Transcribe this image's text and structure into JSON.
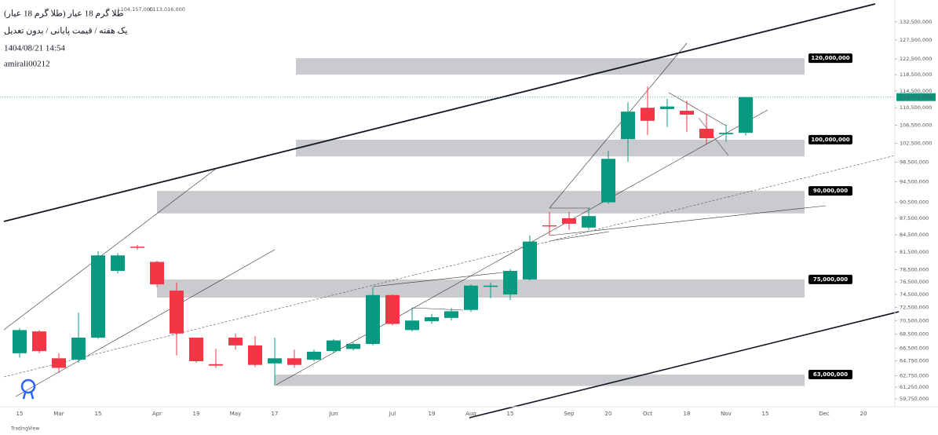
{
  "chart_data": {
    "type": "candlestick",
    "title": "طلا گرم 18 عیار (طلا گرم 18 عیار)",
    "subtitle": "یک هفته / قیمت پایانی / بدون تعدیل",
    "date_text": "1404/08/21 14:54",
    "author": "amirali00212",
    "ohlc_text": [
      "L104,157,000",
      "C113,016,000"
    ],
    "branding": "TradingView",
    "log_scale": true,
    "grid": false,
    "up_color": "#089981",
    "down_color": "#f23645",
    "zone_color": "#c4c5c9",
    "categories": [
      null,
      "15",
      null,
      "Mar",
      null,
      "15",
      null,
      null,
      "Apr",
      null,
      "19",
      null,
      "May",
      null,
      "17",
      null,
      null,
      "Jun",
      null,
      null,
      "Jul",
      null,
      "19",
      null,
      "Aug",
      null,
      "15",
      null,
      null,
      "Sep",
      null,
      "20",
      null,
      "Oct",
      null,
      "18",
      null,
      "Nov",
      null,
      "15",
      null,
      null,
      "Dec",
      null,
      "20",
      null
    ],
    "open": [
      null,
      65800000,
      68900000,
      65100000,
      64900000,
      68000000,
      78300000,
      82400000,
      79800000,
      75100000,
      68000000,
      64300000,
      68000000,
      66900000,
      64400000,
      65100000,
      64900000,
      66100000,
      66400000,
      67100000,
      74400000,
      69100000,
      70400000,
      70900000,
      72100000,
      75700000,
      74500000,
      76900000,
      86200000,
      87500000,
      85800000,
      90500000,
      103400000,
      110500000,
      110200000,
      109800000,
      105700000,
      104500000,
      104800000,
      null,
      null,
      null,
      null,
      null,
      null,
      null
    ],
    "high": [
      null,
      69400000,
      69100000,
      65800000,
      71700000,
      81600000,
      81300000,
      82700000,
      80000000,
      76400000,
      68000000,
      66400000,
      68600000,
      68200000,
      68000000,
      66300000,
      66300000,
      67800000,
      67300000,
      75600000,
      74500000,
      72400000,
      71500000,
      72400000,
      76100000,
      76400000,
      78600000,
      84400000,
      88700000,
      88700000,
      89400000,
      100900000,
      111800000,
      115600000,
      112600000,
      112200000,
      109100000,
      106700000,
      113016000,
      null,
      null,
      null,
      null,
      null,
      null,
      null
    ],
    "low": [
      null,
      65200000,
      65800000,
      63100000,
      64500000,
      67800000,
      77900000,
      81900000,
      75700000,
      65500000,
      64500000,
      63800000,
      66300000,
      63900000,
      61500000,
      63800000,
      64700000,
      65800000,
      66200000,
      66900000,
      69800000,
      68900000,
      70000000,
      70500000,
      71800000,
      73900000,
      73600000,
      76700000,
      84400000,
      85400000,
      85400000,
      90200000,
      98600000,
      104300000,
      106100000,
      105000000,
      102400000,
      102900000,
      104157000,
      null,
      null,
      null,
      null,
      null,
      null,
      null
    ],
    "close": [
      null,
      69100000,
      66100000,
      63800000,
      68000000,
      80900000,
      80900000,
      82200000,
      76100000,
      68600000,
      64700000,
      64100000,
      66900000,
      64200000,
      65100000,
      64200000,
      66000000,
      67600000,
      67100000,
      74400000,
      70000000,
      70500000,
      71000000,
      71900000,
      75900000,
      75900000,
      78300000,
      83300000,
      86000000,
      86500000,
      87900000,
      99200000,
      109600000,
      107500000,
      110800000,
      108900000,
      103600000,
      104800000,
      113016000,
      null,
      null,
      null,
      null,
      null,
      null,
      null
    ],
    "last_price": {
      "value": 113016000,
      "label": "113,016,000"
    },
    "zones": [
      {
        "label": "120,000,000",
        "top": 122700000,
        "bottom": 118500000
      },
      {
        "label": "100,000,000",
        "top": 103300000,
        "bottom": 99700000
      },
      {
        "label": "90,000,000",
        "top": 92700000,
        "bottom": 88400000
      },
      {
        "label": "75,000,000",
        "top": 76900000,
        "bottom": 74000000
      },
      {
        "label": "63,000,000",
        "top": 62900000,
        "bottom": 61400000
      }
    ],
    "ylim": [
      58770000,
      138740000
    ],
    "yticks": [
      {
        "value": 132500000,
        "label": "132,500,000"
      },
      {
        "value": 127500000,
        "label": "127,500,000"
      },
      {
        "value": 122500000,
        "label": "122,500,000"
      },
      {
        "value": 118500000,
        "label": "118,500,000"
      },
      {
        "value": 114500000,
        "label": "114,500,000"
      },
      {
        "value": 110500000,
        "label": "110,500,000"
      },
      {
        "value": 106500000,
        "label": "106,500,000"
      },
      {
        "value": 102500000,
        "label": "102,500,000"
      },
      {
        "value": 98500000,
        "label": "98,500,000"
      },
      {
        "value": 94500000,
        "label": "94,500,000"
      },
      {
        "value": 90500000,
        "label": "90,500,000"
      },
      {
        "value": 87500000,
        "label": "87,500,000"
      },
      {
        "value": 84500000,
        "label": "84,500,000"
      },
      {
        "value": 81500000,
        "label": "81,500,000"
      },
      {
        "value": 78500000,
        "label": "78,500,000"
      },
      {
        "value": 76500000,
        "label": "76,500,000"
      },
      {
        "value": 74500000,
        "label": "74,500,000"
      },
      {
        "value": 72500000,
        "label": "72,500,000"
      },
      {
        "value": 70500000,
        "label": "70,500,000"
      },
      {
        "value": 68500000,
        "label": "68,500,000"
      },
      {
        "value": 66500000,
        "label": "66,500,000"
      },
      {
        "value": 64750000,
        "label": "64,750,000"
      },
      {
        "value": 62750000,
        "label": "62,750,000"
      },
      {
        "value": 61250000,
        "label": "61,250,000"
      },
      {
        "value": 59750000,
        "label": "59,750,000"
      }
    ]
  }
}
